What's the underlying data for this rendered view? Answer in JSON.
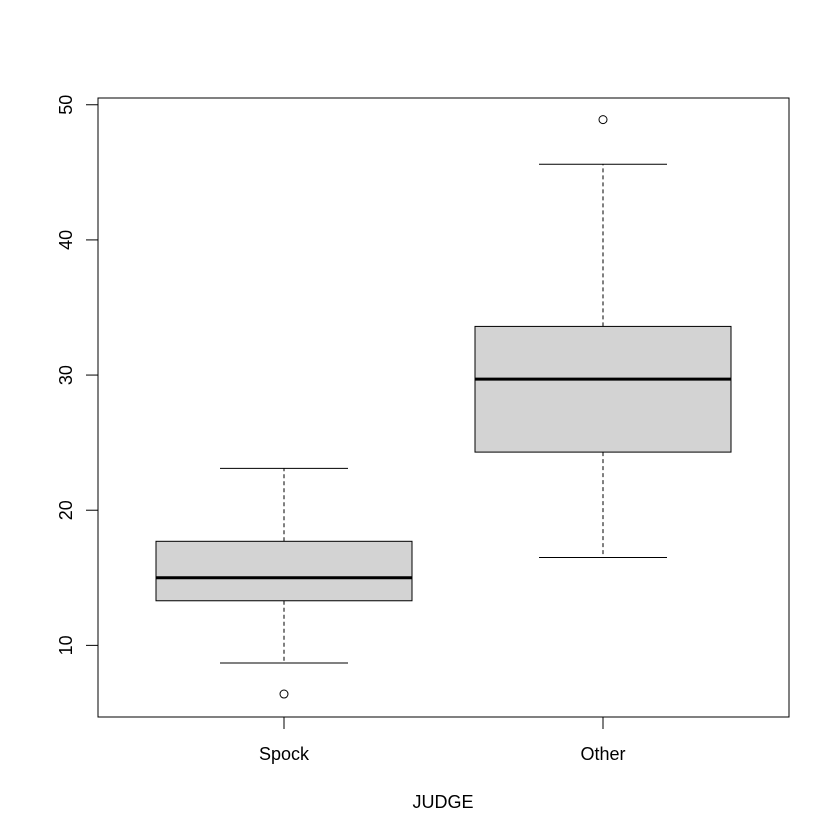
{
  "chart_data": {
    "type": "boxplot",
    "title": "",
    "xlabel": "JUDGE",
    "ylabel": "",
    "ylim": [
      4.7,
      50.5
    ],
    "yticks": [
      "10",
      "20",
      "30",
      "40",
      "50"
    ],
    "grid": false,
    "categories": [
      "Spock",
      "Other"
    ],
    "boxes": [
      {
        "category": "Spock",
        "whisker_low": 8.7,
        "q1": 13.3,
        "median": 15.0,
        "q3": 17.7,
        "whisker_high": 23.1,
        "outliers": [
          6.4
        ]
      },
      {
        "category": "Other",
        "whisker_low": 16.5,
        "q1": 24.3,
        "median": 29.7,
        "q3": 33.6,
        "whisker_high": 45.6,
        "outliers": [
          48.9
        ]
      }
    ],
    "colors": {
      "box_fill": "#d3d3d3",
      "stroke": "#000000"
    }
  }
}
